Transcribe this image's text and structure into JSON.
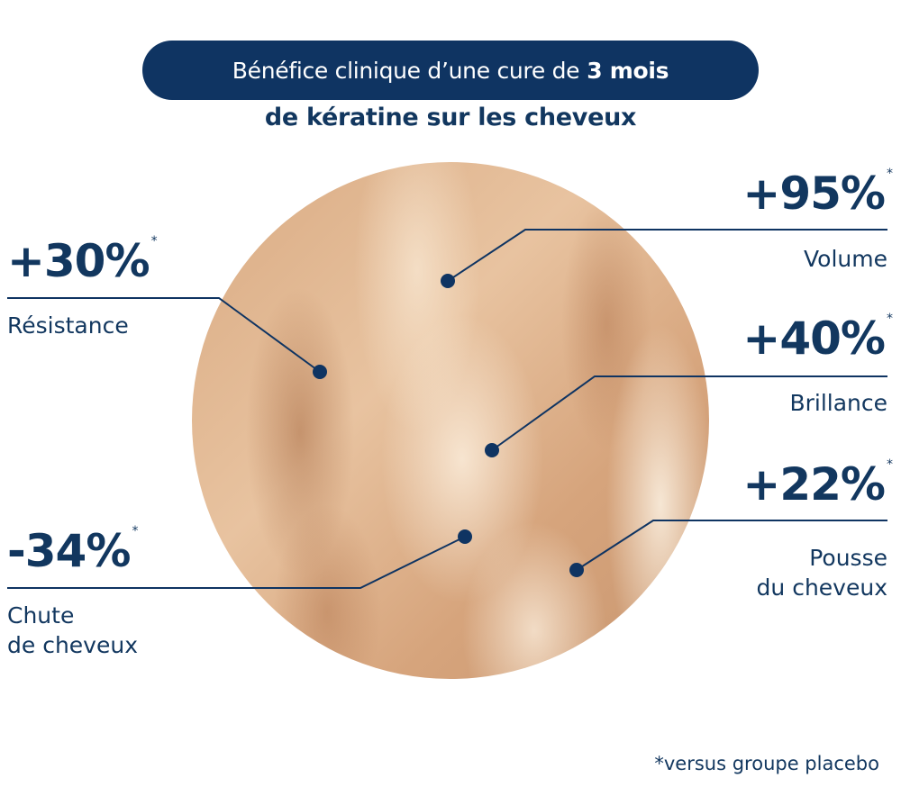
{
  "header": {
    "title_prefix": "Bénéfice clinique d’une cure de",
    "title_bold": "3 mois",
    "subtitle": "de kératine sur les cheveux"
  },
  "stats": [
    {
      "value": "+30%",
      "mark": "*",
      "label": "Résistance"
    },
    {
      "value": "+95%",
      "mark": "*",
      "label": "Volume"
    },
    {
      "value": "+40%",
      "mark": "*",
      "label": "Brillance"
    },
    {
      "value": "+22%",
      "mark": "*",
      "label_line1": "Pousse",
      "label_line2": "du cheveux"
    },
    {
      "value": "-34%",
      "mark": "*",
      "label_line1": "Chute",
      "label_line2": "de cheveux"
    }
  ],
  "footnote": "*versus groupe placebo",
  "colors": {
    "navy": "#0f3462",
    "text": "#12375f"
  }
}
